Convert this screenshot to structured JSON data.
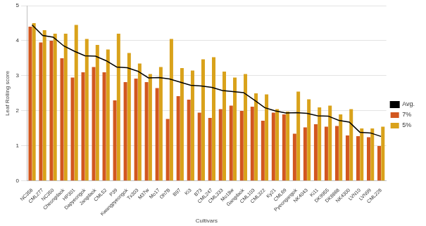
{
  "chart_data": {
    "type": "bar",
    "x_label": "Cultivars",
    "y_label": "Leaf Rolling score",
    "categories": [
      "NC358",
      "CML277",
      "NC350",
      "Cheongdaok",
      "HP301",
      "Dapyeongok",
      "Jangdaok",
      "CML52",
      "P39",
      "Kwangpyeongok",
      "Tx303",
      "M37w",
      "Mo17",
      "Oh7B",
      "B97",
      "Ki3",
      "B73",
      "CML247",
      "CML333",
      "Mo18w",
      "Gangdaok",
      "CML103",
      "CML322",
      "Ky21",
      "CML69",
      "Pyeongangok",
      "NK4043",
      "Ki11",
      "DK9955",
      "DK8868",
      "NK4300",
      "LVN10",
      "LVN99",
      "CML228"
    ],
    "series": [
      {
        "name": "7%",
        "type": "bar",
        "color": "#d2571f",
        "values": [
          4.4,
          3.95,
          4.0,
          3.5,
          2.95,
          3.1,
          3.25,
          3.1,
          2.3,
          2.82,
          2.92,
          2.82,
          2.65,
          1.77,
          2.42,
          2.32,
          1.95,
          1.8,
          2.05,
          2.15,
          2.0,
          2.12,
          1.72,
          1.95,
          1.9,
          1.35,
          1.53,
          1.62,
          1.55,
          1.57,
          1.3,
          1.28,
          1.25,
          1.0
        ]
      },
      {
        "name": "5%",
        "type": "bar",
        "color": "#d9a21b",
        "values": [
          4.5,
          4.3,
          4.2,
          4.2,
          4.45,
          4.05,
          3.88,
          3.75,
          4.2,
          3.65,
          3.35,
          3.05,
          3.25,
          4.05,
          3.22,
          3.15,
          3.47,
          3.53,
          3.12,
          2.95,
          3.05,
          2.5,
          2.47,
          2.05,
          1.98,
          2.55,
          2.33,
          2.1,
          2.15,
          1.9,
          2.05,
          1.5,
          1.5,
          1.55
        ]
      },
      {
        "name": "Avg.",
        "type": "line",
        "color": "#000000",
        "marker": "none",
        "line_style": "solid",
        "values": [
          4.45,
          4.15,
          4.1,
          3.85,
          3.7,
          3.57,
          3.56,
          3.43,
          3.25,
          3.23,
          3.13,
          2.94,
          2.95,
          2.91,
          2.82,
          2.73,
          2.71,
          2.67,
          2.58,
          2.55,
          2.52,
          2.31,
          2.09,
          2.0,
          1.94,
          1.95,
          1.93,
          1.86,
          1.85,
          1.73,
          1.68,
          1.39,
          1.37,
          1.27
        ]
      }
    ],
    "ylim": [
      0,
      5
    ],
    "yticks": [
      0,
      1,
      2,
      3,
      4,
      5
    ],
    "grid": true,
    "legend": "right"
  }
}
